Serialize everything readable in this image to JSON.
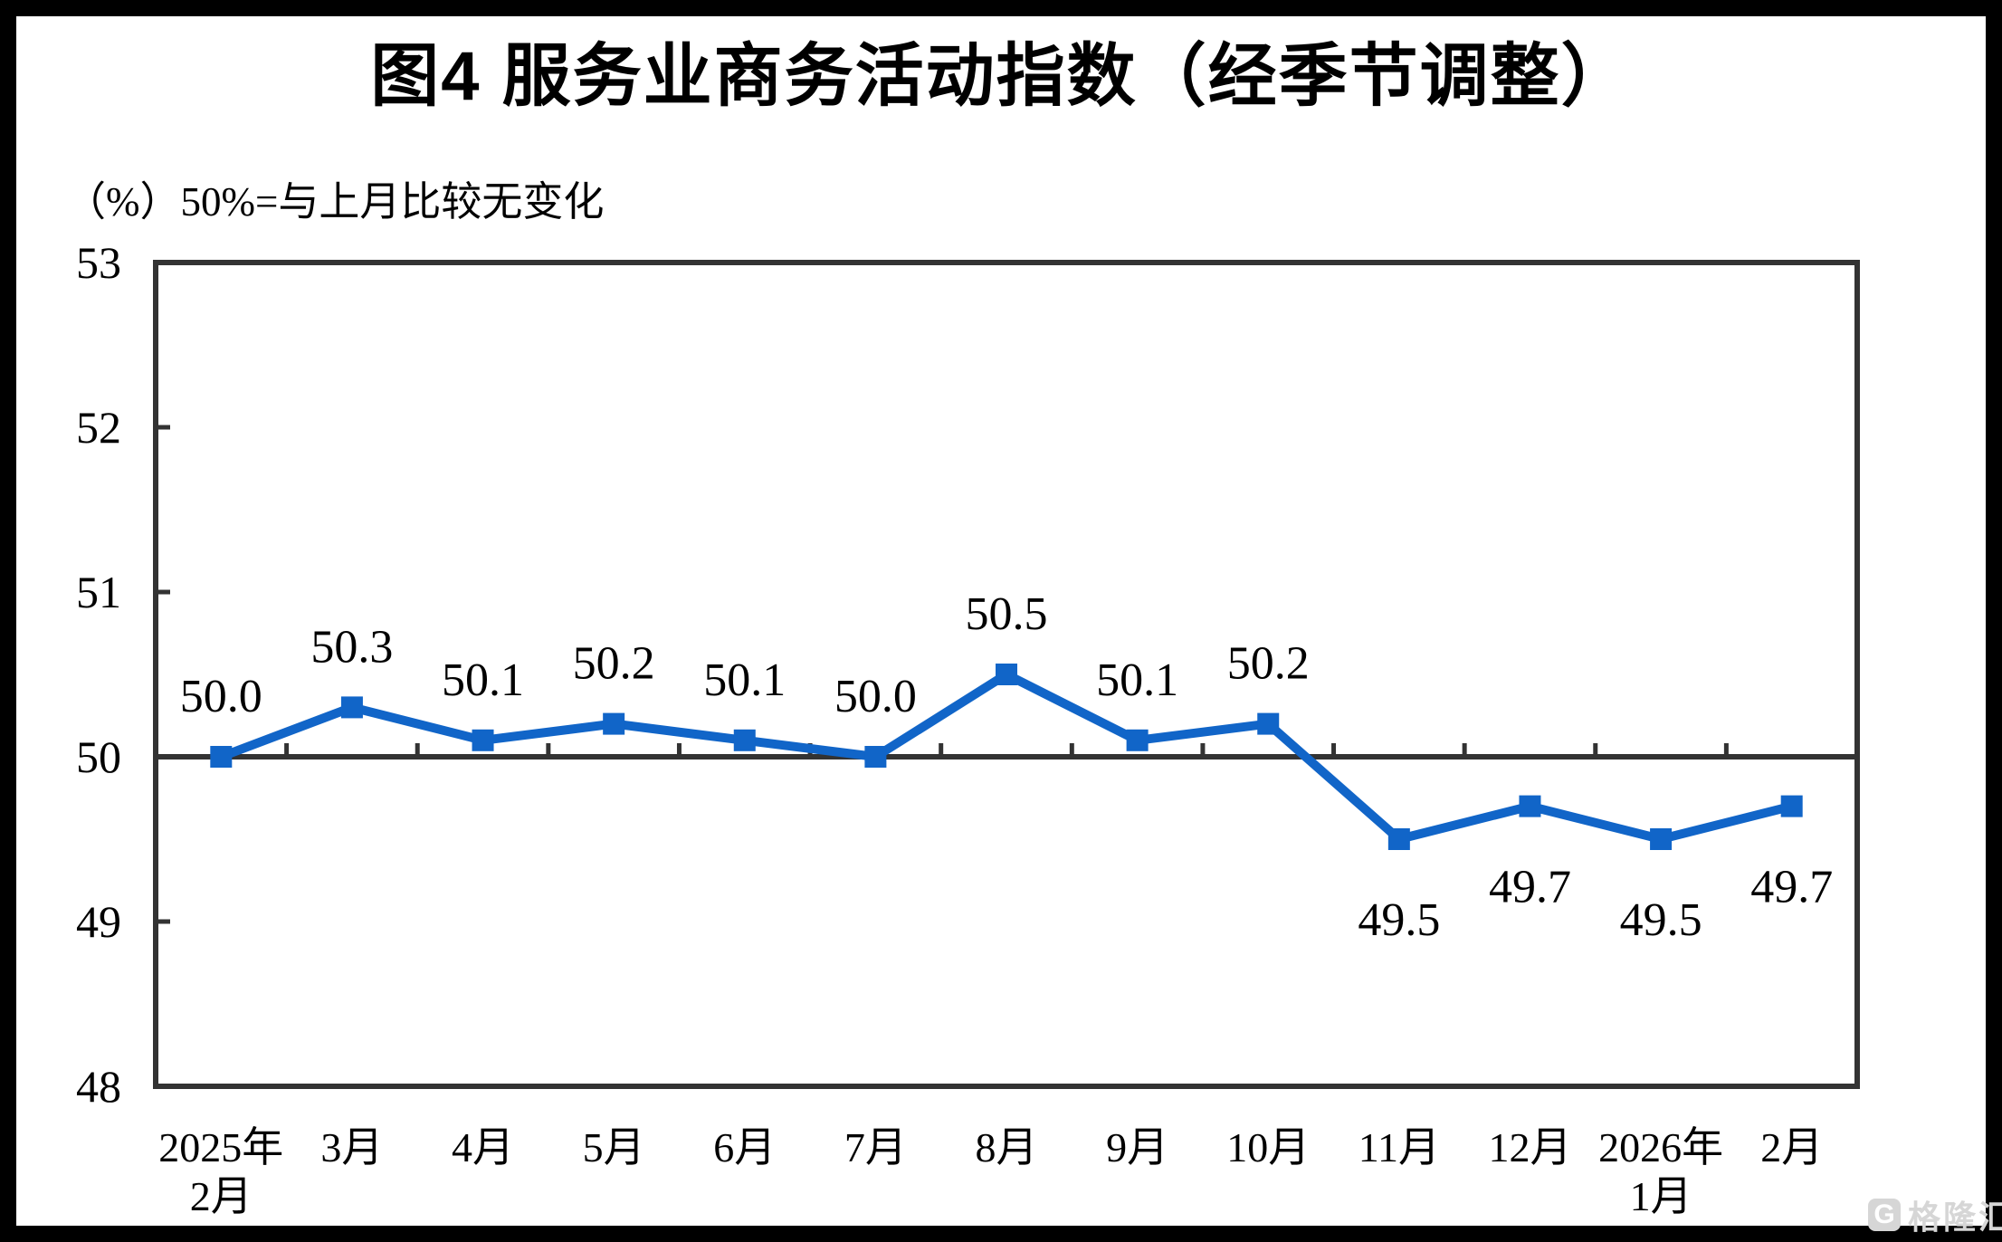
{
  "title": "图4  服务业商务活动指数（经季节调整）",
  "watermark": {
    "logo": "gelonghui-logo",
    "logo_glyph": "G",
    "text": "格隆汇"
  },
  "chart_data": {
    "type": "line",
    "title": "图4  服务业商务活动指数（经季节调整）",
    "unit_label": "（%）50%=与上月比较无变化",
    "categories": [
      "2025年\n2月",
      "3月",
      "4月",
      "5月",
      "6月",
      "7月",
      "8月",
      "9月",
      "10月",
      "11月",
      "12月",
      "2026年\n1月",
      "2月"
    ],
    "values": [
      50.0,
      50.3,
      50.1,
      50.2,
      50.1,
      50.0,
      50.5,
      50.1,
      50.2,
      49.5,
      49.7,
      49.5,
      49.7
    ],
    "data_labels": [
      "50.0",
      "50.3",
      "50.1",
      "50.2",
      "50.1",
      "50.0",
      "50.5",
      "50.1",
      "50.2",
      "49.5",
      "49.7",
      "49.5",
      "49.7"
    ],
    "ylim": [
      48,
      53
    ],
    "yticks": [
      48,
      49,
      50,
      51,
      52,
      53
    ],
    "baseline": 50,
    "grid": false,
    "legend": "none",
    "marker": "square",
    "line_color": "#1165C8",
    "axis_color": "#333333",
    "text_color": "#000000"
  }
}
